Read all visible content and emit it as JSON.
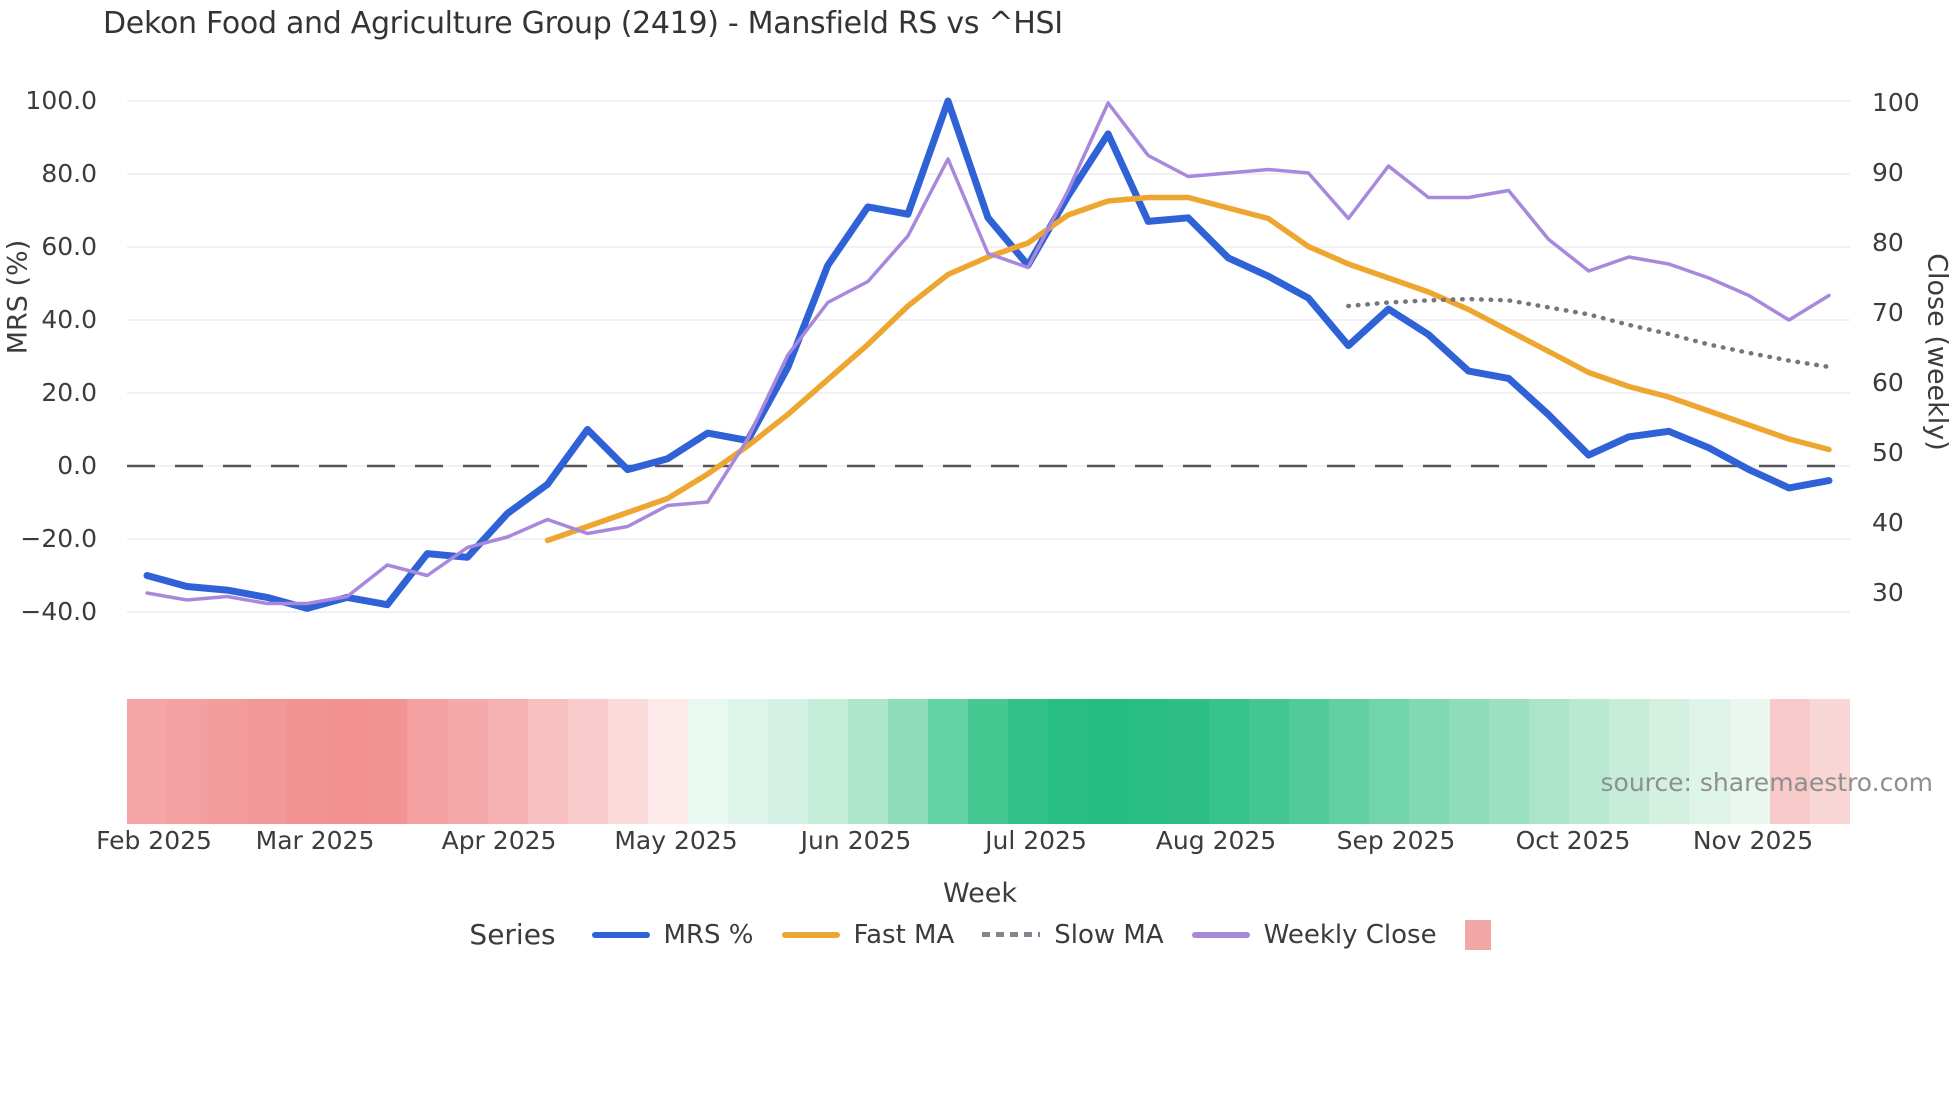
{
  "title": "Dekon Food and Agriculture Group (2419) - Mansfield RS vs ^HSI",
  "source": "source: sharemaestro.com",
  "axes": {
    "left": {
      "label": "MRS (%)",
      "ticks": [
        "100.0",
        "80.0",
        "60.0",
        "40.0",
        "20.0",
        "0.0",
        "−20.0",
        "−40.0"
      ],
      "tick_values": [
        100,
        80,
        60,
        40,
        20,
        0,
        -20,
        -40
      ],
      "range": [
        -40,
        100
      ]
    },
    "right": {
      "label": "Close (weekly)",
      "ticks": [
        "100",
        "90",
        "80",
        "70",
        "60",
        "50",
        "40",
        "30"
      ],
      "tick_values": [
        100,
        90,
        80,
        70,
        60,
        50,
        40,
        30
      ],
      "range": [
        30,
        100
      ]
    },
    "x": {
      "label": "Week",
      "ticks": [
        {
          "label": "Feb 2025",
          "week": 0.17
        },
        {
          "label": "Mar 2025",
          "week": 4.2
        },
        {
          "label": "Apr 2025",
          "week": 8.8
        },
        {
          "label": "May 2025",
          "week": 13.2
        },
        {
          "label": "Jun 2025",
          "week": 17.7
        },
        {
          "label": "Jul 2025",
          "week": 22.2
        },
        {
          "label": "Aug 2025",
          "week": 26.7
        },
        {
          "label": "Sep 2025",
          "week": 31.2
        },
        {
          "label": "Oct 2025",
          "week": 35.6
        },
        {
          "label": "Nov 2025",
          "week": 40.1
        }
      ]
    }
  },
  "legend": {
    "title": "Series",
    "items": [
      {
        "label": "MRS %",
        "swatch": "line",
        "color": "#2f62d6"
      },
      {
        "label": "Fast MA",
        "swatch": "line",
        "color": "#eda62f"
      },
      {
        "label": "Slow MA",
        "swatch": "dashed-line",
        "color": "#85858f"
      },
      {
        "label": "Weekly Close",
        "swatch": "line",
        "color": "#a888dd"
      },
      {
        "label": "",
        "swatch": "square",
        "color": "#f2a7a7"
      }
    ]
  },
  "chart_data": {
    "type": "line",
    "title": "Dekon Food and Agriculture Group (2419) - Mansfield RS vs ^HSI",
    "xlabel": "Week",
    "ylabel_left": "MRS (%)",
    "ylabel_right": "Close (weekly)",
    "ylim_left": [
      -40,
      100
    ],
    "ylim_right": [
      30,
      100
    ],
    "x_ticks": [
      "Feb 2025",
      "Mar 2025",
      "Apr 2025",
      "May 2025",
      "Jun 2025",
      "Jul 2025",
      "Aug 2025",
      "Sep 2025",
      "Oct 2025",
      "Nov 2025"
    ],
    "n_weeks": 43,
    "zero_reference_line": 0,
    "grid": true,
    "legend_position": "bottom",
    "series": [
      {
        "name": "MRS %",
        "axis": "left",
        "color": "#2f62d6",
        "style": "solid",
        "values": [
          -30,
          -33,
          -34,
          -36,
          -39,
          -36,
          -38,
          -24,
          -25,
          -13,
          -5,
          10,
          -1,
          2,
          9,
          7,
          27,
          55,
          71,
          69,
          100,
          68,
          55,
          74,
          91,
          67,
          68,
          57,
          52,
          46,
          33,
          43,
          36,
          26,
          24,
          14,
          3,
          8,
          9.5,
          5,
          -1,
          -6,
          -4
        ]
      },
      {
        "name": "Fast MA",
        "axis": "right",
        "color": "#eda62f",
        "style": "solid",
        "values": [
          null,
          null,
          null,
          null,
          null,
          null,
          null,
          null,
          null,
          null,
          37.5,
          39.5,
          41.5,
          43.5,
          47,
          51,
          55.5,
          60.5,
          65.5,
          71,
          75.5,
          78,
          80,
          84,
          86,
          86.5,
          86.5,
          85,
          83.5,
          79.5,
          77,
          75,
          73,
          70.5,
          67.5,
          64.5,
          61.5,
          59.5,
          58,
          56,
          54,
          52,
          50.5
        ]
      },
      {
        "name": "Slow MA",
        "axis": "right",
        "color": "#75757f",
        "style": "dotted",
        "values": [
          null,
          null,
          null,
          null,
          null,
          null,
          null,
          null,
          null,
          null,
          null,
          null,
          null,
          null,
          null,
          null,
          null,
          null,
          null,
          null,
          null,
          null,
          null,
          null,
          null,
          null,
          null,
          null,
          null,
          null,
          71,
          71.5,
          71.8,
          72,
          71.8,
          70.8,
          69.8,
          68.3,
          67,
          65.5,
          64.3,
          63.2,
          62.3
        ]
      },
      {
        "name": "Weekly Close",
        "axis": "right",
        "color": "#a888dd",
        "style": "solid",
        "values": [
          30,
          29,
          29.5,
          28.5,
          28.5,
          29.5,
          34,
          32.5,
          36.5,
          38,
          40.5,
          38.5,
          39.5,
          42.5,
          43,
          52,
          64,
          71.5,
          74.5,
          81,
          92,
          78.5,
          76.5,
          87.5,
          100,
          92.5,
          89.5,
          90,
          90.5,
          90,
          83.5,
          91,
          86.5,
          86.5,
          87.5,
          80.5,
          76,
          78,
          77,
          75,
          72.5,
          69,
          72.5
        ]
      }
    ],
    "heatmap_strip": {
      "description": "weekly sentiment strip below plot, red negative to green positive",
      "colors": [
        "#f5a5a5",
        "#f4a0a0",
        "#f49c9c",
        "#f39898",
        "#f29393",
        "#f29191",
        "#f29494",
        "#f4a0a0",
        "#f5a8a8",
        "#f6b2b2",
        "#f8c0c0",
        "#f9cccc",
        "#fbdada",
        "#fde9e9",
        "#eaf8f2",
        "#ddf4ea",
        "#d3f1e4",
        "#c4edda",
        "#ade6cd",
        "#8edcba",
        "#63d2a6",
        "#45c892",
        "#31c189",
        "#28bd84",
        "#25bc82",
        "#28bd84",
        "#2ebf87",
        "#38c28c",
        "#44c693",
        "#52cb9b",
        "#63d0a4",
        "#72d4ac",
        "#80d8b4",
        "#8edcbb",
        "#9ce0c3",
        "#abe4cb",
        "#b9e9d3",
        "#c7edda",
        "#d3f0e1",
        "#dff4e9",
        "#e9f7ef",
        "#f7c9c9",
        "#f9d6d6"
      ]
    },
    "colors": {
      "grid": "#ebebf2",
      "zero_line": "#55555e",
      "background": "#ffffff",
      "legend_square": "#f2a7a7"
    }
  }
}
